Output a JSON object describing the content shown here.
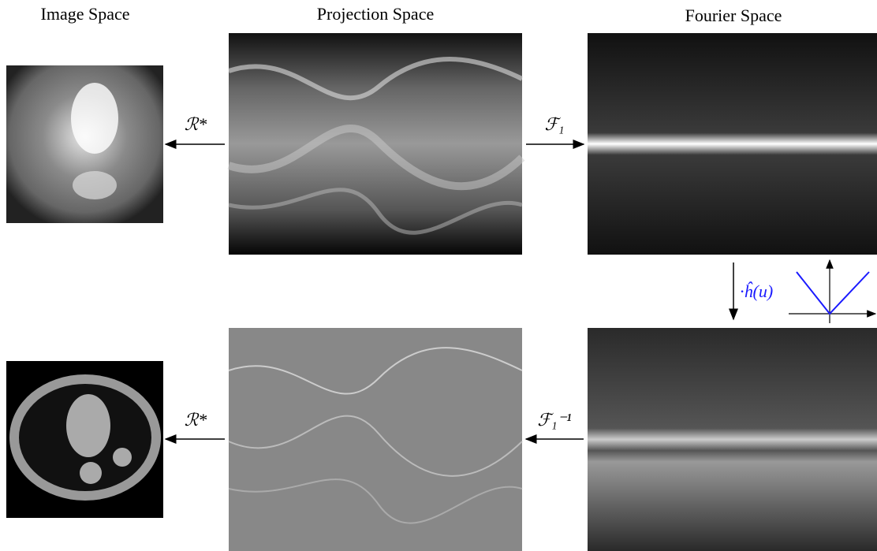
{
  "headers": {
    "image_space": "Image Space",
    "projection_space": "Projection Space",
    "fourier_space": "Fourier Space"
  },
  "arrows": {
    "backprojection_top": "ℛ*",
    "fourier_transform": "ℱ₁",
    "filter": "·ĥ(u)",
    "inverse_fourier": "ℱ₁⁻¹",
    "backprojection_bottom": "ℛ*"
  }
}
